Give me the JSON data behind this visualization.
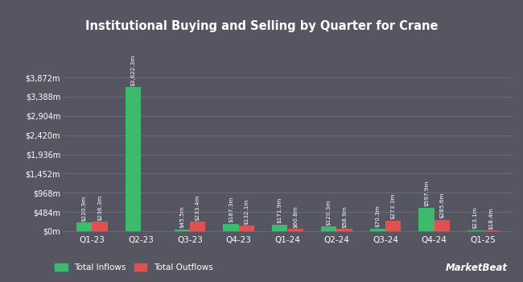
{
  "title": "Institutional Buying and Selling by Quarter for Crane",
  "categories": [
    "Q1-23",
    "Q2-23",
    "Q3-23",
    "Q4-23",
    "Q1-24",
    "Q2-24",
    "Q3-24",
    "Q4-24",
    "Q1-25"
  ],
  "inflows": [
    220.9,
    3622.3,
    45.5,
    187.3,
    171.9,
    120.3,
    70.3,
    597.9,
    23.1
  ],
  "outflows": [
    236.3,
    0.0,
    233.4,
    132.1,
    60.8,
    58.9,
    273.3,
    285.6,
    18.4
  ],
  "inflow_labels": [
    "$220.9m",
    "$3,622.3m",
    "$45.5m",
    "$187.3m",
    "$171.9m",
    "$120.3m",
    "$70.3m",
    "$597.9m",
    "$23.1m"
  ],
  "outflow_labels": [
    "$236.3m",
    "",
    "$233.4m",
    "$132.1m",
    "$60.8m",
    "$58.9m",
    "$273.3m",
    "$285.6m",
    "$18.4m"
  ],
  "inflow_color": "#3dba6e",
  "outflow_color": "#e05252",
  "background_color": "#565663",
  "grid_color": "#6a6a78",
  "text_color": "#ffffff",
  "yticks": [
    0,
    484,
    968,
    1452,
    1936,
    2420,
    2904,
    3388,
    3872
  ],
  "ytick_labels": [
    "$0m",
    "$484m",
    "$968m",
    "$1,452m",
    "$1,936m",
    "$2,420m",
    "$2,904m",
    "$3,388m",
    "$3,872m"
  ],
  "ylim_max": 4400,
  "legend_inflow": "Total Inflows",
  "legend_outflow": "Total Outflows",
  "bar_width": 0.32,
  "watermark": "MarketBeat"
}
